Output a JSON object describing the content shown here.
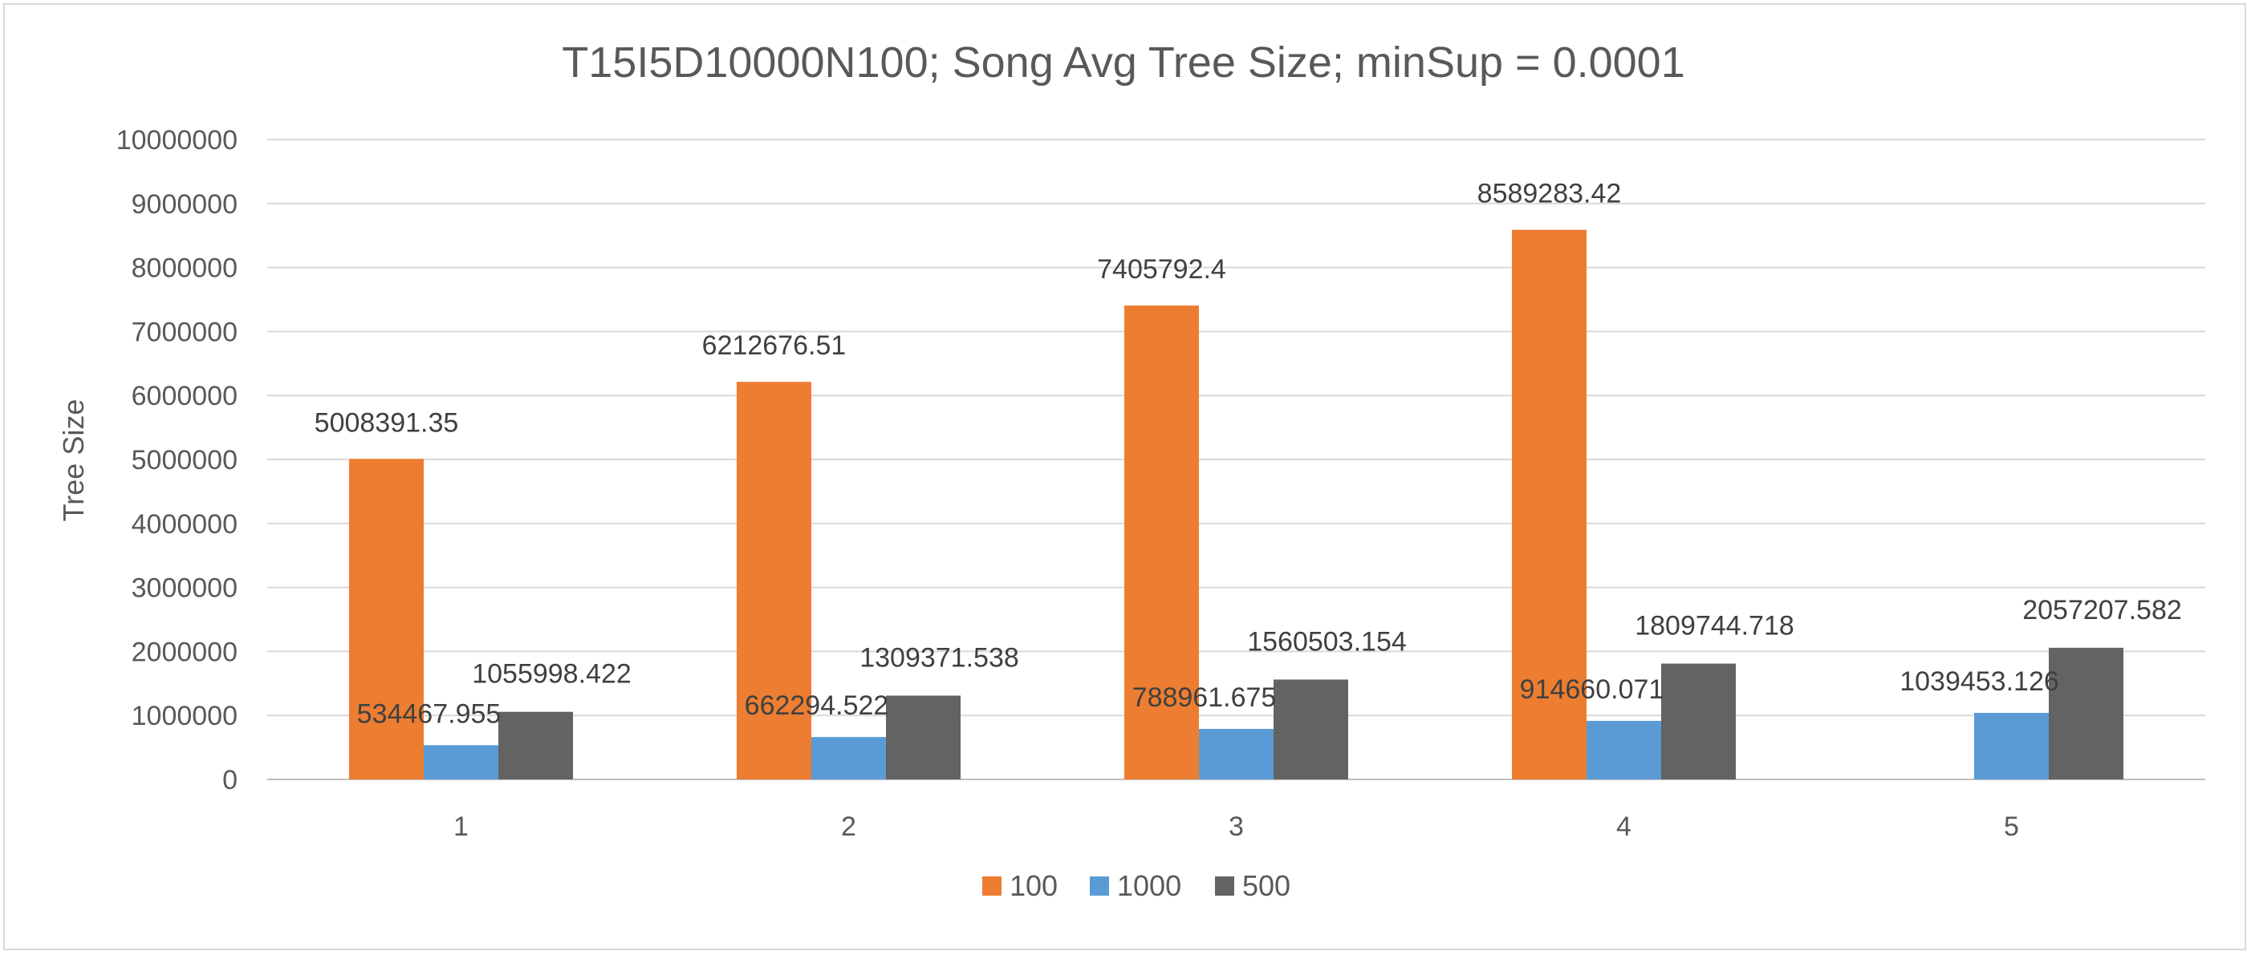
{
  "chart_data": {
    "type": "bar",
    "title": "T15I5D10000N100; Song Avg Tree Size; minSup = 0.0001",
    "xlabel": "",
    "ylabel": "Tree Size",
    "categories": [
      "1",
      "2",
      "3",
      "4",
      "5"
    ],
    "ylim": [
      0,
      10000000
    ],
    "yticks": [
      0,
      1000000,
      2000000,
      3000000,
      4000000,
      5000000,
      6000000,
      7000000,
      8000000,
      9000000,
      10000000
    ],
    "grid": true,
    "legend_position": "bottom",
    "series": [
      {
        "name": "100",
        "color": "#ED7D31",
        "values": [
          5008391.35,
          6212676.51,
          7405792.4,
          8589283.42,
          null
        ],
        "labels": [
          "5008391.35",
          "6212676.51",
          "7405792.4",
          "8589283.42",
          ""
        ]
      },
      {
        "name": "1000",
        "color": "#5B9BD5",
        "values": [
          534467.955,
          662294.522,
          788961.675,
          914660.071,
          1039453.126
        ],
        "labels": [
          "534467.955",
          "662294.522",
          "788961.675",
          "914660.071",
          "1039453.126"
        ]
      },
      {
        "name": "500",
        "color": "#636363",
        "values": [
          1055998.422,
          1309371.538,
          1560503.154,
          1809744.718,
          2057207.582
        ],
        "labels": [
          "1055998.422",
          "1309371.538",
          "1560503.154",
          "1809744.718",
          "2057207.582"
        ]
      }
    ]
  }
}
